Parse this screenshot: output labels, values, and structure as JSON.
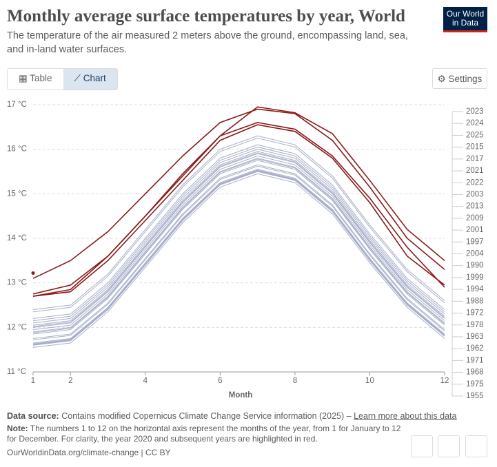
{
  "header": {
    "title": "Monthly average surface temperatures by year, World",
    "subtitle": "The temperature of the air measured 2 meters above the ground, encompassing land, sea, and in-land water surfaces.",
    "logo": [
      "Our World",
      "in Data"
    ]
  },
  "tabs": [
    "Table",
    "Chart"
  ],
  "settings": "Settings",
  "chart_data": {
    "type": "line",
    "x_label": "Month",
    "x": [
      1,
      2,
      3,
      4,
      5,
      6,
      7,
      8,
      9,
      10,
      11,
      12
    ],
    "xlim": [
      1,
      12
    ],
    "xticks": [
      1,
      2,
      4,
      6,
      8,
      10,
      12
    ],
    "ylim": [
      11,
      17
    ],
    "yticks": [
      {
        "value": 11,
        "label": "11 °C"
      },
      {
        "value": 12,
        "label": "12 °C"
      },
      {
        "value": 13,
        "label": "13 °C"
      },
      {
        "value": 14,
        "label": "14 °C"
      },
      {
        "value": 15,
        "label": "15 °C"
      },
      {
        "value": 16,
        "label": "16 °C"
      },
      {
        "value": 17,
        "label": "17 °C"
      }
    ],
    "grid": true,
    "series": [
      {
        "name": "2023",
        "color": "#8b1a1a",
        "values": [
          12.7,
          12.85,
          13.6,
          14.5,
          15.45,
          16.3,
          16.95,
          16.82,
          16.35,
          15.3,
          14.2,
          13.5
        ]
      },
      {
        "name": "2024",
        "color": "#8b1a1a",
        "values": [
          13.1,
          13.5,
          14.15,
          15.0,
          15.85,
          16.6,
          16.9,
          16.8,
          16.2,
          15.15,
          14.0,
          13.3
        ]
      },
      {
        "name": "2025",
        "color": "#8b1a1a",
        "values": [
          13.22,
          null,
          null,
          null,
          null,
          null,
          null,
          null,
          null,
          null,
          null,
          null
        ]
      },
      {
        "name": "2015",
        "color": "#a7aec9",
        "values": [
          12.35,
          12.45,
          13.15,
          14.15,
          15.15,
          15.95,
          16.25,
          16.05,
          15.35,
          14.25,
          13.25,
          12.55
        ]
      },
      {
        "name": "2017",
        "color": "#a7aec9",
        "values": [
          12.4,
          12.5,
          13.2,
          14.2,
          15.2,
          16,
          16.3,
          16.1,
          15.4,
          14.3,
          13.3,
          12.6
        ]
      },
      {
        "name": "2021",
        "color": "#8b1a1a",
        "values": [
          12.7,
          12.8,
          13.5,
          14.4,
          15.3,
          16.2,
          16.55,
          16.4,
          15.8,
          14.8,
          13.6,
          12.95
        ]
      },
      {
        "name": "2022",
        "color": "#8b1a1a",
        "values": [
          12.75,
          12.95,
          13.6,
          14.5,
          15.4,
          16.3,
          16.6,
          16.45,
          15.85,
          14.9,
          13.8,
          12.9
        ]
      },
      {
        "name": "2003",
        "color": "#a7aec9",
        "values": [
          12.15,
          12.25,
          12.95,
          13.95,
          14.95,
          15.75,
          16.05,
          15.85,
          15.15,
          14.05,
          13.05,
          12.35
        ]
      },
      {
        "name": "2013",
        "color": "#a7aec9",
        "values": [
          12.2,
          12.3,
          13,
          14,
          15,
          15.8,
          16.1,
          15.9,
          15.2,
          14.1,
          13.1,
          12.4
        ]
      },
      {
        "name": "2009",
        "color": "#a7aec9",
        "values": [
          12.1,
          12.2,
          12.9,
          13.9,
          14.9,
          15.7,
          16,
          15.8,
          15.1,
          14,
          13,
          12.3
        ]
      },
      {
        "name": "2001",
        "color": "#a7aec9",
        "values": [
          12.05,
          12.15,
          12.85,
          13.85,
          14.85,
          15.65,
          15.95,
          15.75,
          15.05,
          13.95,
          12.95,
          12.25
        ]
      },
      {
        "name": "1997",
        "color": "#a7aec9",
        "values": [
          12,
          12.1,
          12.8,
          13.8,
          14.8,
          15.6,
          15.9,
          15.7,
          15,
          13.9,
          12.9,
          12.2
        ]
      },
      {
        "name": "2004",
        "color": "#a7aec9",
        "values": [
          12.02,
          12.12,
          12.82,
          13.82,
          14.82,
          15.62,
          15.92,
          15.72,
          15.02,
          13.92,
          12.92,
          12.22
        ]
      },
      {
        "name": "1990",
        "color": "#a7aec9",
        "values": [
          11.95,
          12.05,
          12.75,
          13.75,
          14.75,
          15.55,
          15.85,
          15.65,
          14.95,
          13.85,
          12.85,
          12.15
        ]
      },
      {
        "name": "1999",
        "color": "#a7aec9",
        "values": [
          11.9,
          12,
          12.7,
          13.7,
          14.7,
          15.5,
          15.8,
          15.6,
          14.9,
          13.8,
          12.8,
          12.1
        ]
      },
      {
        "name": "1994",
        "color": "#a7aec9",
        "values": [
          11.88,
          11.98,
          12.68,
          13.68,
          14.68,
          15.48,
          15.78,
          15.58,
          14.88,
          13.78,
          12.78,
          12.08
        ]
      },
      {
        "name": "1988",
        "color": "#a7aec9",
        "values": [
          11.85,
          11.95,
          12.65,
          13.65,
          14.65,
          15.45,
          15.75,
          15.55,
          14.85,
          13.75,
          12.75,
          12.05
        ]
      },
      {
        "name": "1972",
        "color": "#a7aec9",
        "values": [
          11.75,
          11.85,
          12.55,
          13.55,
          14.55,
          15.35,
          15.65,
          15.45,
          14.75,
          13.65,
          12.65,
          11.95
        ]
      },
      {
        "name": "1978",
        "color": "#a7aec9",
        "values": [
          11.72,
          11.82,
          12.52,
          13.52,
          14.52,
          15.32,
          15.62,
          15.42,
          14.72,
          13.62,
          12.62,
          11.92
        ]
      },
      {
        "name": "1963",
        "color": "#a7aec9",
        "values": [
          11.65,
          11.75,
          12.45,
          13.45,
          14.45,
          15.25,
          15.55,
          15.35,
          14.65,
          13.55,
          12.55,
          11.85
        ]
      },
      {
        "name": "1962",
        "color": "#a7aec9",
        "values": [
          11.63,
          11.73,
          12.43,
          13.43,
          14.43,
          15.23,
          15.53,
          15.33,
          14.63,
          13.53,
          12.53,
          11.83
        ]
      },
      {
        "name": "1971",
        "color": "#a7aec9",
        "values": [
          11.62,
          11.72,
          12.42,
          13.42,
          14.42,
          15.22,
          15.52,
          15.32,
          14.62,
          13.52,
          12.52,
          11.82
        ]
      },
      {
        "name": "1968",
        "color": "#a7aec9",
        "values": [
          11.61,
          11.71,
          12.41,
          13.41,
          14.41,
          15.21,
          15.51,
          15.31,
          14.61,
          13.51,
          12.51,
          11.81
        ]
      },
      {
        "name": "1975",
        "color": "#a7aec9",
        "values": [
          11.6,
          11.7,
          12.4,
          13.4,
          14.4,
          15.2,
          15.5,
          15.3,
          14.6,
          13.5,
          12.5,
          11.8
        ]
      },
      {
        "name": "1955",
        "color": "#a7aec9",
        "values": [
          11.55,
          11.65,
          12.35,
          13.35,
          14.35,
          15.15,
          15.45,
          15.25,
          14.55,
          13.45,
          12.45,
          11.75
        ]
      }
    ]
  },
  "footer": {
    "source_label": "Data source:",
    "source": "Contains modified Copernicus Climate Change Service information (2025) –",
    "source_link": "Learn more about this data",
    "note_label": "Note:",
    "note": "The numbers 1 to 12 on the horizontal axis represent the months of the year, from 1 for January to 12 for December. For clarity, the year 2020 and subsequent years are highlighted in red.",
    "url": "OurWorldinData.org/climate-change | CC BY"
  }
}
